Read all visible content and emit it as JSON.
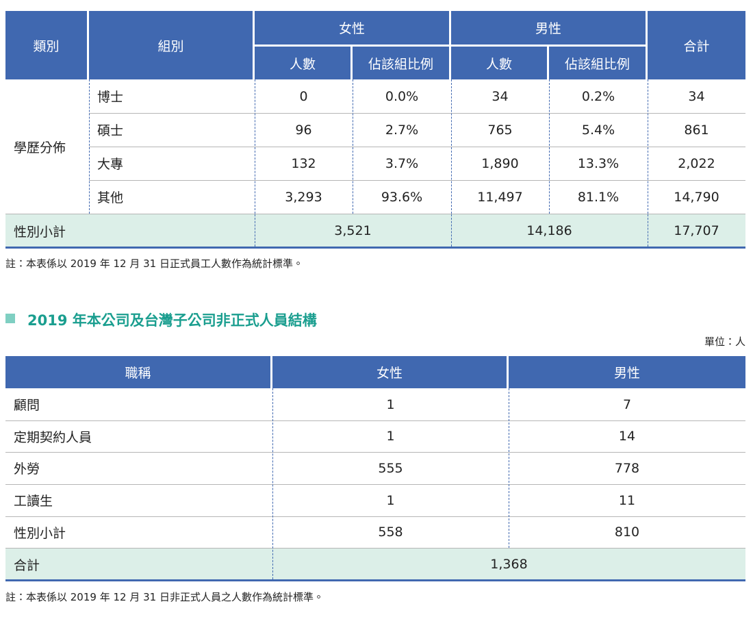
{
  "table1": {
    "header": {
      "category": "類別",
      "group": "組別",
      "female": "女性",
      "male": "男性",
      "total": "合計",
      "female_sub": [
        "人數",
        "佔該組比例"
      ],
      "male_sub": [
        "人數",
        "佔該組比例"
      ]
    },
    "section_label": "學歷分佈",
    "rows": [
      [
        "博士",
        "0",
        "0.0%",
        "34",
        "0.2%",
        "34"
      ],
      [
        "碩士",
        "96",
        "2.7%",
        "765",
        "5.4%",
        "861"
      ],
      [
        "大專",
        "132",
        "3.7%",
        "1,890",
        "13.3%",
        "2,022"
      ],
      [
        "其他",
        "3,293",
        "93.6%",
        "11,497",
        "81.1%",
        "14,790"
      ]
    ],
    "subtotal": [
      "性別小計",
      "3,521",
      "14,186",
      "17,707"
    ],
    "note": "註：本表係以 2019 年 12 月 31 日正式員工人數作為統計標準。"
  },
  "section2": {
    "title": "2019 年本公司及台灣子公司非正式人員結構",
    "unit": "單位：人"
  },
  "table2": {
    "header": [
      "職稱",
      "女性",
      "男性"
    ],
    "rows": [
      [
        "顧問",
        "1",
        "7"
      ],
      [
        "定期契約人員",
        "1",
        "14"
      ],
      [
        "外勞",
        "555",
        "778"
      ],
      [
        "工讀生",
        "1",
        "11"
      ],
      [
        "性別小計",
        "558",
        "810"
      ]
    ],
    "total": [
      "合計",
      "1,368"
    ],
    "note": "註：本表係以 2019 年 12 月 31 日非正式人員之人數作為統計標準。"
  }
}
